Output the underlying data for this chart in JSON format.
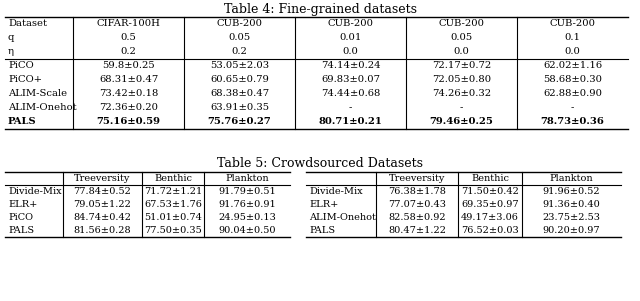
{
  "table4_title": "Table 4: Fine-grained datasets",
  "table4_headers": [
    "Dataset",
    "CIFAR-100H",
    "CUB-200",
    "CUB-200",
    "CUB-200",
    "CUB-200"
  ],
  "table4_row_q": [
    "q",
    "0.5",
    "0.05",
    "0.01",
    "0.05",
    "0.1"
  ],
  "table4_row_eta": [
    "η",
    "0.2",
    "0.2",
    "0.0",
    "0.0",
    "0.0"
  ],
  "table4_rows": [
    [
      "PiCO",
      "59.8±0.25",
      "53.05±2.03",
      "74.14±0.24",
      "72.17±0.72",
      "62.02±1.16"
    ],
    [
      "PiCO+",
      "68.31±0.47",
      "60.65±0.79",
      "69.83±0.07",
      "72.05±0.80",
      "58.68±0.30"
    ],
    [
      "ALIM-Scale",
      "73.42±0.18",
      "68.38±0.47",
      "74.44±0.68",
      "74.26±0.32",
      "62.88±0.90"
    ],
    [
      "ALIM-Onehot",
      "72.36±0.20",
      "63.91±0.35",
      "-",
      "-",
      "-"
    ],
    [
      "PALS",
      "75.16±0.59",
      "75.76±0.27",
      "80.71±0.21",
      "79.46±0.25",
      "78.73±0.36"
    ]
  ],
  "table4_bold_row": 4,
  "table5_title": "Table 5: Crowdsourced Datasets",
  "table5_left_headers": [
    "",
    "Treeversity",
    "Benthic",
    "Plankton"
  ],
  "table5_right_headers": [
    "",
    "Treeversity",
    "Benthic",
    "Plankton"
  ],
  "table5_left_rows": [
    [
      "Divide-Mix",
      "77.84±0.52",
      "71.72±1.21",
      "91.79±0.51"
    ],
    [
      "ELR+",
      "79.05±1.22",
      "67.53±1.76",
      "91.76±0.91"
    ],
    [
      "PiCO",
      "84.74±0.42",
      "51.01±0.74",
      "24.95±0.13"
    ],
    [
      "PALS",
      "81.56±0.28",
      "77.50±0.35",
      "90.04±0.50"
    ]
  ],
  "table5_right_rows": [
    [
      "Divide-Mix",
      "76.38±1.78",
      "71.50±0.42",
      "91.96±0.52"
    ],
    [
      "ELR+",
      "77.07±0.43",
      "69.35±0.97",
      "91.36±0.40"
    ],
    [
      "ALIM-Onehot",
      "82.58±0.92",
      "49.17±3.06",
      "23.75±2.53"
    ],
    [
      "PALS",
      "80.47±1.22",
      "76.52±0.03",
      "90.20±0.97"
    ]
  ],
  "bg_color": "#ffffff",
  "text_color": "#000000",
  "line_color": "#000000"
}
